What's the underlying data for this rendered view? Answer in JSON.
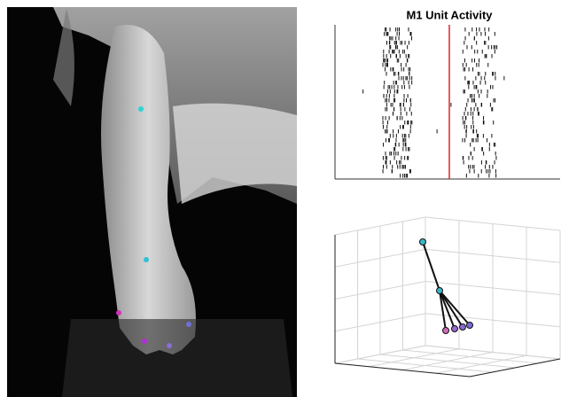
{
  "panel": {
    "title": "M1 Unit Activity"
  }
}
